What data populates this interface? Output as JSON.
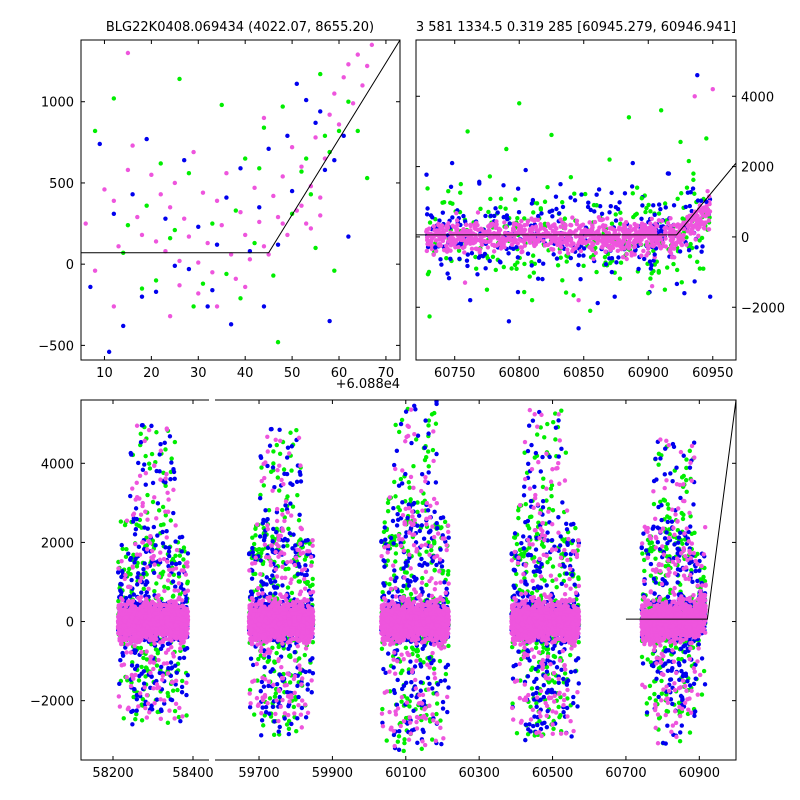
{
  "chart_data": [
    {
      "id": "top-left",
      "type": "scatter",
      "title": "BLG22K0408.069434 (4022.07, 8655.20)",
      "x_offset_label": "+6.088e4",
      "xlim": [
        5,
        73
      ],
      "ylim": [
        -590,
        1380
      ],
      "xticks": [
        10,
        20,
        30,
        40,
        50,
        60,
        70
      ],
      "yticks": [
        -500,
        0,
        500,
        1000
      ],
      "series": [
        {
          "name": "green",
          "color": "#00ee00",
          "points": [
            [
              8,
              820
            ],
            [
              12,
              1020
            ],
            [
              15,
              240
            ],
            [
              18,
              -150
            ],
            [
              19,
              360
            ],
            [
              22,
              620
            ],
            [
              24,
              160
            ],
            [
              26,
              1140
            ],
            [
              28,
              560
            ],
            [
              31,
              -120
            ],
            [
              33,
              250
            ],
            [
              36,
              -60
            ],
            [
              38,
              330
            ],
            [
              40,
              650
            ],
            [
              42,
              130
            ],
            [
              44,
              840
            ],
            [
              46,
              -70
            ],
            [
              48,
              970
            ],
            [
              50,
              310
            ],
            [
              52,
              570
            ],
            [
              54,
              430
            ],
            [
              56,
              1170
            ],
            [
              58,
              690
            ],
            [
              60,
              820
            ],
            [
              62,
              1000
            ],
            [
              64,
              820
            ],
            [
              66,
              530
            ],
            [
              21,
              -100
            ],
            [
              29,
              -260
            ],
            [
              35,
              980
            ],
            [
              47,
              -480
            ],
            [
              55,
              100
            ],
            [
              59,
              -40
            ],
            [
              14,
              70
            ],
            [
              25,
              210
            ],
            [
              39,
              -210
            ],
            [
              43,
              590
            ],
            [
              53,
              650
            ],
            [
              57,
              790
            ]
          ]
        },
        {
          "name": "blue",
          "color": "#0000ee",
          "points": [
            [
              7,
              -140
            ],
            [
              9,
              740
            ],
            [
              11,
              -540
            ],
            [
              14,
              -380
            ],
            [
              16,
              430
            ],
            [
              19,
              770
            ],
            [
              21,
              -170
            ],
            [
              23,
              280
            ],
            [
              25,
              -10
            ],
            [
              27,
              640
            ],
            [
              30,
              230
            ],
            [
              32,
              -260
            ],
            [
              34,
              120
            ],
            [
              37,
              -370
            ],
            [
              39,
              590
            ],
            [
              41,
              80
            ],
            [
              43,
              350
            ],
            [
              45,
              710
            ],
            [
              47,
              120
            ],
            [
              49,
              790
            ],
            [
              51,
              1110
            ],
            [
              53,
              1010
            ],
            [
              55,
              870
            ],
            [
              57,
              580
            ],
            [
              59,
              640
            ],
            [
              61,
              790
            ],
            [
              62,
              170
            ],
            [
              58,
              -350
            ],
            [
              18,
              -200
            ],
            [
              28,
              -30
            ],
            [
              36,
              410
            ],
            [
              44,
              -260
            ],
            [
              50,
              450
            ],
            [
              56,
              940
            ],
            [
              12,
              310
            ],
            [
              33,
              -160
            ]
          ]
        },
        {
          "name": "violet",
          "color": "#ee55dd",
          "points": [
            [
              6,
              250
            ],
            [
              8,
              -40
            ],
            [
              10,
              460
            ],
            [
              12,
              390
            ],
            [
              13,
              110
            ],
            [
              15,
              580
            ],
            [
              16,
              730
            ],
            [
              17,
              290
            ],
            [
              18,
              180
            ],
            [
              20,
              550
            ],
            [
              21,
              140
            ],
            [
              22,
              430
            ],
            [
              23,
              80
            ],
            [
              24,
              350
            ],
            [
              25,
              500
            ],
            [
              26,
              20
            ],
            [
              27,
              280
            ],
            [
              28,
              170
            ],
            [
              29,
              690
            ],
            [
              30,
              10
            ],
            [
              31,
              440
            ],
            [
              32,
              130
            ],
            [
              33,
              -50
            ],
            [
              34,
              390
            ],
            [
              35,
              240
            ],
            [
              36,
              560
            ],
            [
              37,
              60
            ],
            [
              38,
              -90
            ],
            [
              39,
              320
            ],
            [
              40,
              180
            ],
            [
              41,
              30
            ],
            [
              42,
              470
            ],
            [
              43,
              260
            ],
            [
              44,
              110
            ],
            [
              45,
              60
            ],
            [
              46,
              420
            ],
            [
              47,
              290
            ],
            [
              48,
              540
            ],
            [
              49,
              180
            ],
            [
              50,
              720
            ],
            [
              51,
              330
            ],
            [
              52,
              600
            ],
            [
              53,
              250
            ],
            [
              54,
              480
            ],
            [
              55,
              780
            ],
            [
              56,
              410
            ],
            [
              57,
              650
            ],
            [
              58,
              920
            ],
            [
              59,
              1050
            ],
            [
              60,
              860
            ],
            [
              61,
              1150
            ],
            [
              62,
              1230
            ],
            [
              63,
              990
            ],
            [
              64,
              1290
            ],
            [
              65,
              1100
            ],
            [
              66,
              1220
            ],
            [
              67,
              1350
            ],
            [
              15,
              1300
            ],
            [
              12,
              -260
            ],
            [
              24,
              -320
            ],
            [
              30,
              -180
            ],
            [
              44,
              900
            ],
            [
              52,
              360
            ],
            [
              56,
              300
            ],
            [
              48,
              250
            ],
            [
              54,
              220
            ],
            [
              26,
              -130
            ],
            [
              34,
              -260
            ],
            [
              40,
              -140
            ]
          ]
        }
      ],
      "model_line": [
        [
          5,
          70
        ],
        [
          45,
          70
        ],
        [
          73,
          1380
        ]
      ]
    },
    {
      "id": "top-right",
      "type": "scatter",
      "title": "3 581 1334.5 0.319 285 [60945.279, 60946.941]",
      "xlim": [
        60720,
        60968
      ],
      "ylim": [
        -3500,
        5600
      ],
      "xticks": [
        60750,
        60800,
        60850,
        60900,
        60950
      ],
      "yticks": [
        -2000,
        0,
        2000,
        4000
      ],
      "y_axis_side": "right",
      "series": [
        {
          "name": "green",
          "color": "#00ee00",
          "points": [
            [
              60745,
              1300
            ],
            [
              60760,
              3000
            ],
            [
              60775,
              -1500
            ],
            [
              60790,
              2500
            ],
            [
              60800,
              3800
            ],
            [
              60810,
              -1800
            ],
            [
              60825,
              2900
            ],
            [
              60840,
              1700
            ],
            [
              60855,
              -2100
            ],
            [
              60870,
              2200
            ],
            [
              60885,
              3400
            ],
            [
              60900,
              -1600
            ],
            [
              60910,
              3600
            ],
            [
              60925,
              2700
            ],
            [
              60935,
              1800
            ],
            [
              60940,
              -900
            ],
            [
              60770,
              800
            ],
            [
              60820,
              1000
            ],
            [
              60860,
              900
            ],
            [
              60895,
              1100
            ],
            [
              60930,
              1400
            ],
            [
              60945,
              2800
            ]
          ]
        },
        {
          "name": "blue",
          "color": "#0000ee",
          "points": [
            [
              60735,
              -300
            ],
            [
              60748,
              2100
            ],
            [
              60762,
              -1800
            ],
            [
              60778,
              600
            ],
            [
              60792,
              -2400
            ],
            [
              60805,
              1900
            ],
            [
              60818,
              -1200
            ],
            [
              60832,
              1500
            ],
            [
              60846,
              -2600
            ],
            [
              60860,
              1200
            ],
            [
              60874,
              -1700
            ],
            [
              60888,
              2100
            ],
            [
              60902,
              -900
            ],
            [
              60916,
              1800
            ],
            [
              60928,
              -1600
            ],
            [
              60938,
              4600
            ],
            [
              60945,
              1000
            ],
            [
              60785,
              -700
            ],
            [
              60840,
              -600
            ],
            [
              60870,
              700
            ],
            [
              60905,
              -500
            ],
            [
              60920,
              900
            ],
            [
              60948,
              -1700
            ]
          ]
        },
        {
          "name": "violet",
          "color": "#ee55dd",
          "points": [
            [
              60728,
              150
            ],
            [
              60740,
              -80
            ],
            [
              60752,
              220
            ],
            [
              60764,
              -120
            ],
            [
              60776,
              300
            ],
            [
              60788,
              -200
            ],
            [
              60800,
              180
            ],
            [
              60812,
              -90
            ],
            [
              60824,
              260
            ],
            [
              60836,
              -150
            ],
            [
              60848,
              320
            ],
            [
              60860,
              -60
            ],
            [
              60872,
              230
            ],
            [
              60884,
              -180
            ],
            [
              60896,
              290
            ],
            [
              60908,
              -70
            ],
            [
              60920,
              340
            ],
            [
              60932,
              600
            ],
            [
              60940,
              900
            ],
            [
              60946,
              1300
            ],
            [
              60950,
              4200
            ],
            [
              60936,
              4000
            ],
            [
              60758,
              -1300
            ],
            [
              60846,
              -1800
            ],
            [
              60903,
              -1400
            ]
          ]
        }
      ],
      "model_line": [
        [
          60720,
          60
        ],
        [
          60922,
          60
        ],
        [
          60968,
          2100
        ]
      ]
    },
    {
      "id": "bottom",
      "type": "scatter",
      "xlim_segments": [
        [
          58120,
          58440
        ],
        [
          59580,
          61000
        ]
      ],
      "ylim": [
        -3500,
        5600
      ],
      "xticks": [
        58200,
        58400,
        59700,
        59900,
        60100,
        60300,
        60500,
        60700,
        60900
      ],
      "yticks": [
        -2000,
        0,
        2000,
        4000
      ],
      "seasons": [
        {
          "center": 58300,
          "halfwidth": 95,
          "spread_pos": 2600,
          "spread_neg": 1600
        },
        {
          "center": 59760,
          "halfwidth": 95,
          "spread_pos": 2500,
          "spread_neg": 2200
        },
        {
          "center": 60125,
          "halfwidth": 100,
          "spread_pos": 3200,
          "spread_neg": 2600
        },
        {
          "center": 60480,
          "halfwidth": 100,
          "spread_pos": 3000,
          "spread_neg": 2200
        },
        {
          "center": 60830,
          "halfwidth": 95,
          "spread_pos": 2200,
          "spread_neg": 2400
        }
      ],
      "colors": {
        "green": "#00ee00",
        "blue": "#0000ee",
        "violet": "#ee55dd"
      },
      "model_line": [
        [
          60700,
          60
        ],
        [
          60922,
          60
        ],
        [
          61000,
          5600
        ]
      ]
    }
  ]
}
